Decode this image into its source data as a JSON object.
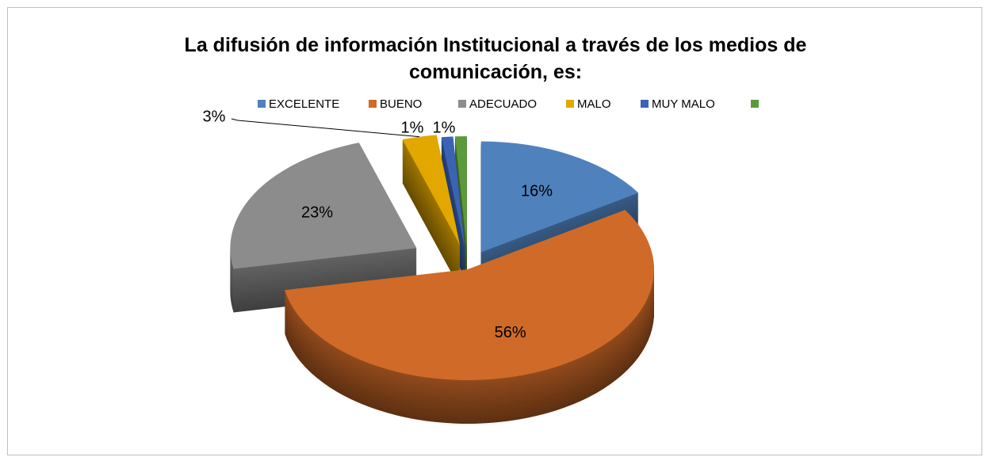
{
  "chart_data": {
    "type": "pie",
    "title": "La difusión de información Institucional a través de los medios de comunicación, es:",
    "categories": [
      "EXCELENTE",
      "BUENO",
      "ADECUADO",
      "MALO",
      "MUY MALO",
      null
    ],
    "values": [
      16,
      56,
      23,
      3,
      1,
      1
    ],
    "value_labels": [
      "16%",
      "56%",
      "23%",
      "3%",
      "1%",
      "1%"
    ],
    "colors": [
      "#4f81bd",
      "#cf6a28",
      "#8c8c8c",
      "#e2a800",
      "#3b63b5",
      "#5b9a3c"
    ],
    "legend": "top"
  }
}
